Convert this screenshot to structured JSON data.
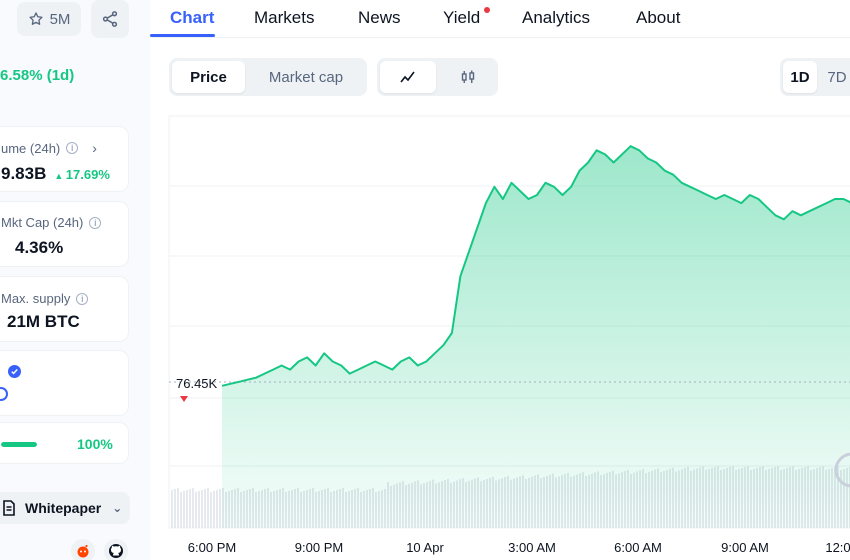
{
  "header": {
    "watchlist_count": "5M",
    "price_change": "6.58% (1d)"
  },
  "stats": {
    "volume": {
      "label": "ume (24h)",
      "value": "9.83B",
      "change": "17.69%"
    },
    "vol_mkt_cap": {
      "label": "Mkt Cap (24h)",
      "value": "4.36%"
    },
    "max_supply": {
      "label": "Max. supply",
      "value": "21M BTC"
    },
    "progress": {
      "label": "100%",
      "value": 1.0
    }
  },
  "whitepaper_label": "Whitepaper",
  "nav": {
    "tabs": [
      "Chart",
      "Markets",
      "News",
      "Yield",
      "Analytics",
      "About"
    ]
  },
  "toolbar": {
    "price_label": "Price",
    "mcap_label": "Market cap",
    "range_1d": "1D",
    "range_7d": "7D"
  },
  "colors": {
    "accent": "#3861fb",
    "up": "#16c784",
    "down": "#ea3943"
  },
  "chart_data": {
    "type": "area",
    "reference_label": "76.45K",
    "x_ticks": [
      "6:00 PM",
      "9:00 PM",
      "10 Apr",
      "3:00 AM",
      "6:00 AM",
      "9:00 AM",
      "12:0"
    ],
    "series": [
      {
        "values": [
          76.3,
          76.35,
          76.4,
          76.45,
          76.5,
          76.6,
          76.7,
          76.8,
          76.7,
          76.9,
          77.0,
          76.8,
          77.1,
          76.9,
          76.8,
          76.6,
          76.7,
          76.8,
          76.9,
          76.8,
          76.7,
          76.9,
          77.0,
          76.8,
          76.9,
          77.1,
          77.3,
          77.6,
          79.0,
          79.6,
          80.2,
          80.8,
          81.2,
          80.9,
          81.3,
          81.1,
          80.9,
          81.0,
          81.3,
          81.2,
          81.0,
          81.2,
          81.6,
          81.8,
          82.1,
          82.0,
          81.8,
          82.0,
          82.2,
          82.1,
          81.9,
          81.8,
          81.6,
          81.5,
          81.3,
          81.2,
          81.1,
          81.0,
          80.9,
          81.0,
          80.9,
          80.8,
          81.0,
          80.9,
          80.7,
          80.5,
          80.4,
          80.6,
          80.5,
          80.6,
          80.7,
          80.8,
          80.9,
          80.9,
          80.8
        ]
      }
    ]
  }
}
